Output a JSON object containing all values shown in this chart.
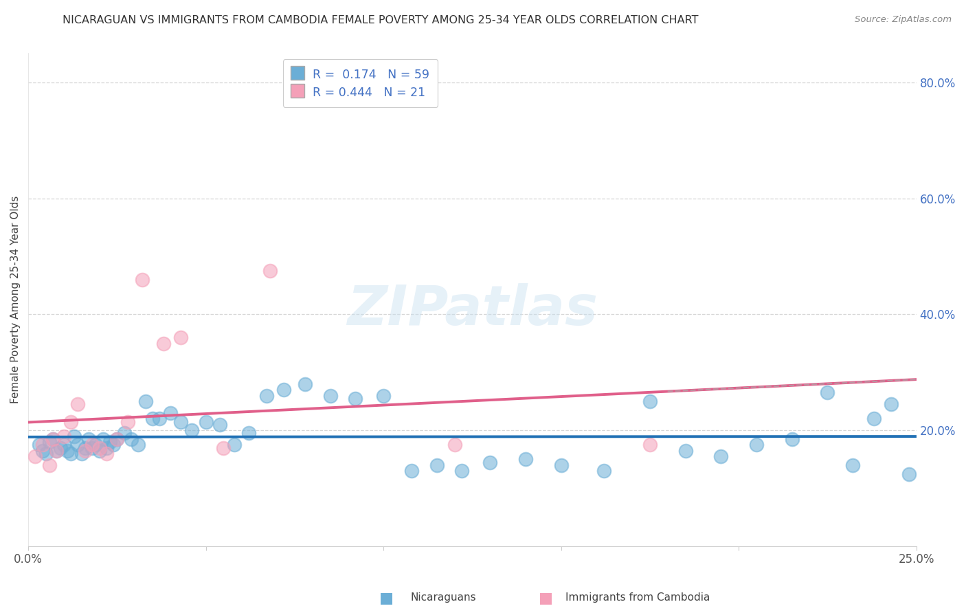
{
  "title": "NICARAGUAN VS IMMIGRANTS FROM CAMBODIA FEMALE POVERTY AMONG 25-34 YEAR OLDS CORRELATION CHART",
  "source": "Source: ZipAtlas.com",
  "ylabel": "Female Poverty Among 25-34 Year Olds",
  "xlim": [
    0.0,
    0.25
  ],
  "ylim": [
    0.0,
    0.85
  ],
  "R_nicaraguan": 0.174,
  "N_nicaraguan": 59,
  "R_cambodian": 0.444,
  "N_cambodian": 21,
  "color_nicaraguan": "#6baed6",
  "color_cambodian": "#f4a0b8",
  "line_color_nicaraguan": "#2171b5",
  "line_color_cambodian": "#e05f8a",
  "watermark": "ZIPatlas",
  "nic_x": [
    0.003,
    0.004,
    0.005,
    0.006,
    0.007,
    0.008,
    0.009,
    0.01,
    0.011,
    0.012,
    0.013,
    0.014,
    0.015,
    0.016,
    0.017,
    0.018,
    0.019,
    0.02,
    0.021,
    0.022,
    0.023,
    0.024,
    0.025,
    0.027,
    0.029,
    0.031,
    0.033,
    0.035,
    0.037,
    0.04,
    0.043,
    0.046,
    0.05,
    0.054,
    0.058,
    0.062,
    0.067,
    0.072,
    0.078,
    0.085,
    0.092,
    0.1,
    0.108,
    0.115,
    0.122,
    0.13,
    0.14,
    0.15,
    0.162,
    0.175,
    0.185,
    0.195,
    0.205,
    0.215,
    0.225,
    0.232,
    0.238,
    0.243,
    0.248
  ],
  "nic_y": [
    0.175,
    0.165,
    0.16,
    0.18,
    0.185,
    0.165,
    0.17,
    0.175,
    0.165,
    0.16,
    0.19,
    0.175,
    0.16,
    0.17,
    0.185,
    0.17,
    0.175,
    0.165,
    0.185,
    0.17,
    0.18,
    0.175,
    0.185,
    0.195,
    0.185,
    0.175,
    0.25,
    0.22,
    0.22,
    0.23,
    0.215,
    0.2,
    0.215,
    0.21,
    0.175,
    0.195,
    0.26,
    0.27,
    0.28,
    0.26,
    0.255,
    0.26,
    0.13,
    0.14,
    0.13,
    0.145,
    0.15,
    0.14,
    0.13,
    0.25,
    0.165,
    0.155,
    0.175,
    0.185,
    0.265,
    0.14,
    0.22,
    0.245,
    0.125
  ],
  "cam_x": [
    0.002,
    0.004,
    0.006,
    0.007,
    0.008,
    0.01,
    0.012,
    0.014,
    0.016,
    0.018,
    0.02,
    0.022,
    0.025,
    0.028,
    0.032,
    0.038,
    0.043,
    0.055,
    0.068,
    0.12,
    0.175
  ],
  "cam_y": [
    0.155,
    0.175,
    0.14,
    0.185,
    0.165,
    0.19,
    0.215,
    0.245,
    0.165,
    0.175,
    0.17,
    0.16,
    0.185,
    0.215,
    0.46,
    0.35,
    0.36,
    0.17,
    0.475,
    0.175,
    0.175
  ]
}
